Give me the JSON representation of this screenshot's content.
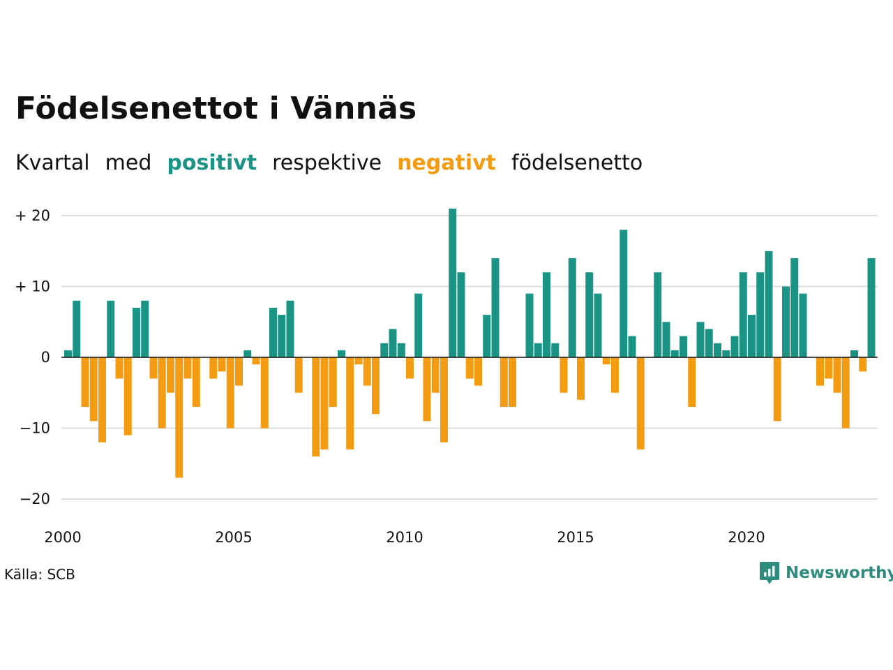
{
  "chart_data": {
    "type": "bar",
    "title": "Födelsenettot i Vännäs",
    "subtitle": {
      "w1": "Kvartal",
      "w2": "med",
      "positive": "positivt",
      "w3": "respektive",
      "negative": "negativt",
      "w4": "födelsenetto"
    },
    "x_tick_labels": [
      "2000",
      "2005",
      "2010",
      "2015",
      "2020"
    ],
    "y_tick_labels": [
      "+ 20",
      "+ 10",
      "0",
      "−10",
      "−20"
    ],
    "y_ticks": [
      20,
      10,
      0,
      -10,
      -20
    ],
    "ylim": [
      -21,
      21
    ],
    "x_start": "2000 Q1",
    "values": [
      1,
      8,
      -7,
      -9,
      -12,
      8,
      -3,
      -11,
      7,
      8,
      -3,
      -10,
      -5,
      -17,
      -3,
      -7,
      0,
      -3,
      -2,
      -10,
      -4,
      1,
      -1,
      -10,
      7,
      6,
      8,
      -5,
      0,
      -14,
      -13,
      -7,
      1,
      -13,
      -1,
      -4,
      -8,
      2,
      4,
      2,
      -3,
      9,
      -9,
      -5,
      -12,
      21,
      12,
      -3,
      -4,
      6,
      14,
      -7,
      -7,
      0,
      9,
      2,
      12,
      2,
      -5,
      14,
      -6,
      12,
      9,
      -1,
      -5,
      18,
      3,
      -13,
      0,
      12,
      5,
      1,
      3,
      -7,
      5,
      4,
      2,
      1,
      3,
      12,
      6,
      12,
      15,
      -9,
      10,
      14,
      9,
      0,
      -4,
      -3,
      -5,
      -10,
      1,
      -2,
      14
    ],
    "colors": {
      "positive": "#1b9486",
      "negative": "#f39c12",
      "grid": "#dddddd",
      "zero": "#111111"
    },
    "grid": true
  },
  "source": "Källa: SCB",
  "brand": {
    "name": "Newsworthy",
    "icon": "newsworthy-logo-icon",
    "color": "#2e8b7d"
  }
}
